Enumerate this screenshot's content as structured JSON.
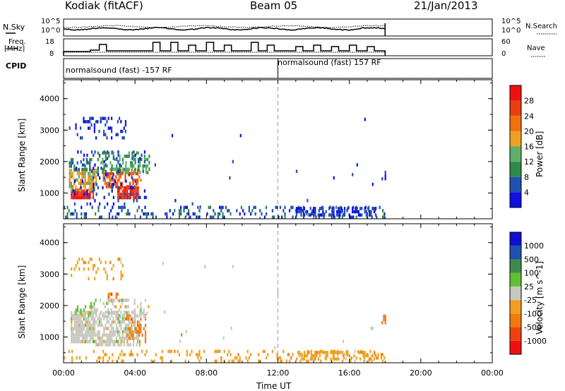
{
  "header": {
    "station": "Kodiak (fitACF)",
    "beam": "Beam 05",
    "date": "21/Jan/2013"
  },
  "sky_panel": {
    "left_label": "N.Sky",
    "right_label": "N.Search",
    "left_ticks": [
      "10^5",
      "10^0"
    ],
    "right_ticks": [
      "10^5",
      "10^0"
    ]
  },
  "freq_panel": {
    "left_label_1": "Freq.",
    "left_label_2": "[MHz]",
    "right_label": "Nave",
    "left_ticks": [
      "18",
      "8"
    ],
    "right_ticks": [
      "60",
      "0"
    ]
  },
  "cpid": {
    "label": "CPID",
    "segment_1": "normalsound (fast) -157 RF",
    "segment_2": "normalsound (fast) 157 RF",
    "switch_hour": 12
  },
  "colors": {
    "power": [
      "#1010e0",
      "#2050b0",
      "#2e8a4a",
      "#5fae6a",
      "#f0a020",
      "#f07010",
      "#e84010",
      "#f01010"
    ],
    "velocity": [
      "#f01010",
      "#f04010",
      "#f07a10",
      "#f0a020",
      "#c8c8c0",
      "#60c030",
      "#3e8a50",
      "#2050b0",
      "#1010d0"
    ]
  },
  "chart_data": [
    {
      "type": "heatmap",
      "name": "power",
      "ylabel": "Slant Range [km]",
      "xlabel": "Time UT",
      "x_ticks": [
        "00:00",
        "04:00",
        "08:00",
        "12:00",
        "16:00",
        "20:00",
        "00:00"
      ],
      "y_ticks": [
        "1000",
        "2000",
        "3000",
        "4000"
      ],
      "xlim_hours": [
        0,
        24
      ],
      "ylim_km": [
        180,
        4600
      ],
      "colorbar_label": "Power [dB]",
      "colorbar_ticks": [
        "28",
        "24",
        "20",
        "16",
        "12",
        "8",
        "4"
      ],
      "scale_range": [
        0,
        32
      ],
      "regions": [
        {
          "t0": 0.4,
          "t1": 1.7,
          "r0": 800,
          "r1": 1050,
          "level": 30,
          "density": 0.95
        },
        {
          "t0": 3.0,
          "t1": 4.2,
          "r0": 800,
          "r1": 1150,
          "level": 29,
          "density": 0.9
        },
        {
          "t0": 0.3,
          "t1": 1.8,
          "r0": 1050,
          "r1": 1750,
          "level": 17,
          "density": 0.7
        },
        {
          "t0": 2.2,
          "t1": 4.3,
          "r0": 1150,
          "r1": 1750,
          "level": 24,
          "density": 0.55
        },
        {
          "t0": 1.8,
          "t1": 4.8,
          "r0": 1600,
          "r1": 2300,
          "level": 12,
          "density": 0.4
        },
        {
          "t0": 0.3,
          "t1": 1.6,
          "r0": 1700,
          "r1": 2100,
          "level": 8,
          "density": 0.45
        },
        {
          "t0": 0.3,
          "t1": 3.5,
          "r0": 2700,
          "r1": 3400,
          "level": 4,
          "density": 0.18
        },
        {
          "t0": 0.5,
          "t1": 4.6,
          "r0": 600,
          "r1": 2300,
          "level": 4,
          "density": 0.12
        },
        {
          "t0": 0.0,
          "t1": 18.0,
          "r0": 180,
          "r1": 500,
          "level": 6,
          "density": 0.22
        },
        {
          "t0": 13.0,
          "t1": 17.5,
          "r0": 250,
          "r1": 480,
          "level": 4,
          "density": 0.45
        },
        {
          "t0": 17.8,
          "t1": 18.0,
          "r0": 1400,
          "r1": 1700,
          "level": 4,
          "density": 0.6
        },
        {
          "t0": 5.0,
          "t1": 17.5,
          "r0": 500,
          "r1": 3300,
          "level": 4,
          "density": 0.004
        }
      ]
    },
    {
      "type": "heatmap",
      "name": "velocity",
      "ylabel": "Slant Range [km]",
      "xlabel": "Time UT",
      "x_ticks": [
        "00:00",
        "04:00",
        "08:00",
        "12:00",
        "16:00",
        "20:00",
        "00:00"
      ],
      "y_ticks": [
        "1000",
        "2000",
        "3000",
        "4000"
      ],
      "xlim_hours": [
        0,
        24
      ],
      "ylim_km": [
        180,
        4600
      ],
      "colorbar_label": "Velocity [m s^-1]",
      "colorbar_ticks": [
        "1000",
        "500",
        "100",
        "25",
        "-25",
        "-100",
        "-500",
        "-1000"
      ],
      "regions": [
        {
          "t0": 0.4,
          "t1": 1.7,
          "r0": 800,
          "r1": 1800,
          "bin": 4,
          "density": 0.9
        },
        {
          "t0": 1.7,
          "t1": 4.3,
          "r0": 700,
          "r1": 1750,
          "bin": 4,
          "density": 0.65
        },
        {
          "t0": 3.5,
          "t1": 4.6,
          "r0": 800,
          "r1": 1700,
          "bin": 2,
          "density": 0.35
        },
        {
          "t0": 2.3,
          "t1": 3.3,
          "r0": 2100,
          "r1": 2400,
          "bin": 2,
          "density": 0.5
        },
        {
          "t0": 1.5,
          "t1": 4.8,
          "r0": 1600,
          "r1": 2200,
          "bin": 4,
          "density": 0.35
        },
        {
          "t0": 0.4,
          "t1": 1.6,
          "r0": 1700,
          "r1": 2000,
          "bin": 5,
          "density": 0.25
        },
        {
          "t0": 0.4,
          "t1": 3.3,
          "r0": 2800,
          "r1": 3500,
          "bin": 3,
          "density": 0.15
        },
        {
          "t0": 0.0,
          "t1": 18.0,
          "r0": 180,
          "r1": 500,
          "bin": 3,
          "density": 0.2
        },
        {
          "t0": 13.0,
          "t1": 17.5,
          "r0": 250,
          "r1": 480,
          "bin": 3,
          "density": 0.45
        },
        {
          "t0": 17.8,
          "t1": 18.0,
          "r0": 1400,
          "r1": 1700,
          "bin": 2,
          "density": 0.6
        },
        {
          "t0": 5.0,
          "t1": 17.5,
          "r0": 500,
          "r1": 3300,
          "bin": 4,
          "density": 0.004
        }
      ]
    }
  ]
}
